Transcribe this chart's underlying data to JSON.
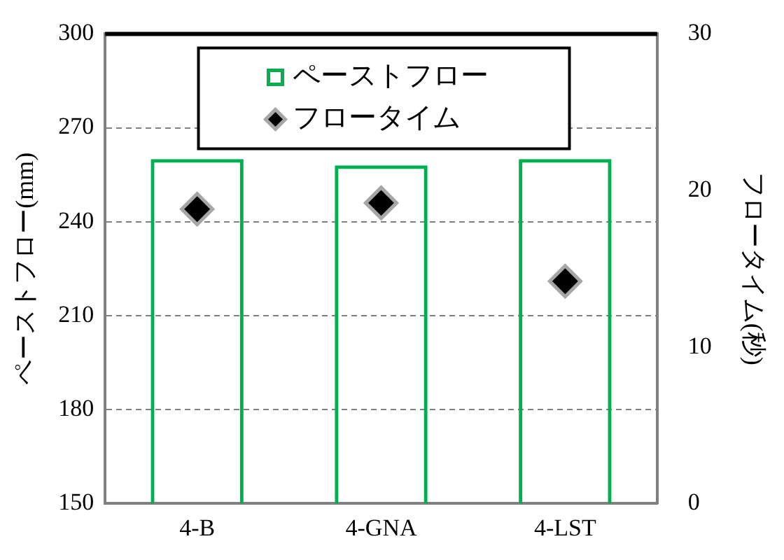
{
  "chart_data": {
    "type": "bar",
    "categories": [
      "4-B",
      "4-GNA",
      "4-LST"
    ],
    "series": [
      {
        "name": "ペーストフロー",
        "color": "#00b050",
        "values": [
          260,
          258,
          260
        ]
      },
      {
        "name": "フロータイム",
        "type": "scatter",
        "axis": "y2",
        "color": "#000000",
        "values": [
          18.8,
          19.2,
          14.2
        ]
      }
    ],
    "ylabel": "ペーストフロー(mm)",
    "y2label": "フロータイム(秒)",
    "ylim": [
      150,
      300
    ],
    "yticks": [
      150,
      180,
      210,
      240,
      270,
      300
    ],
    "y2lim": [
      0,
      30
    ],
    "y2ticks": [
      0,
      10,
      20,
      30
    ],
    "grid": "y",
    "legend": "top",
    "marker": "diamond"
  }
}
